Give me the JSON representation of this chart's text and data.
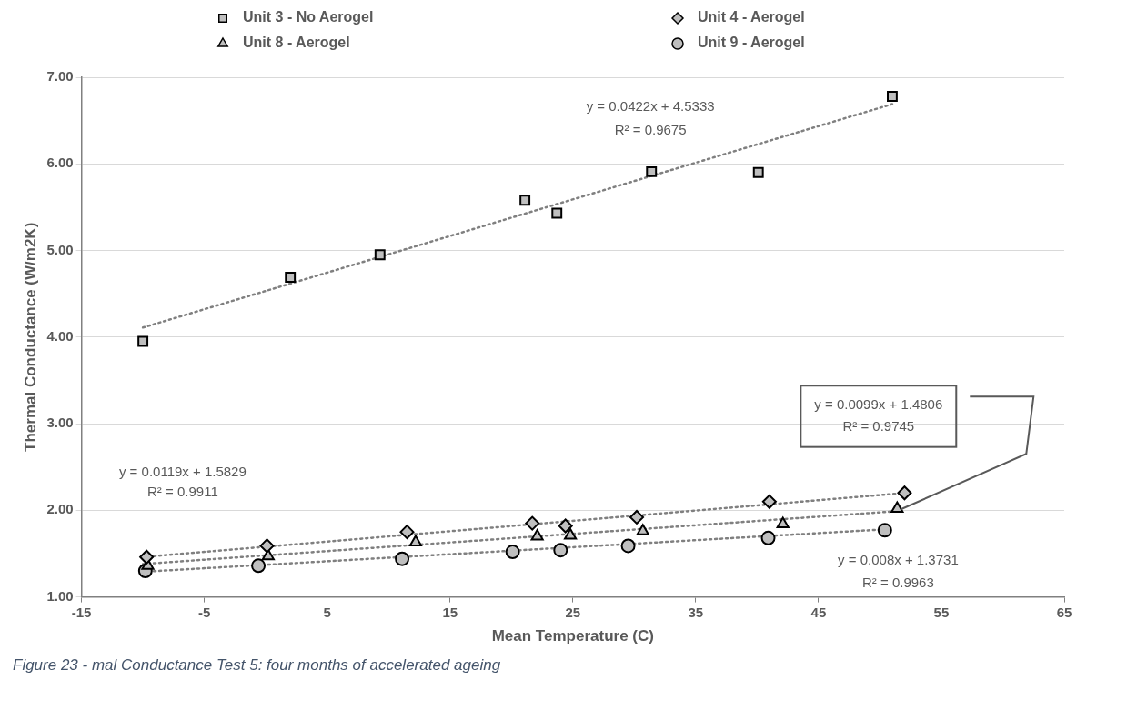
{
  "chart_data": {
    "type": "scatter",
    "xlabel": "Mean Temperature (C)",
    "ylabel": "Thermal Conductance (W/m2K)",
    "xlim": [
      -15,
      65
    ],
    "xticks": [
      -15,
      -5,
      5,
      15,
      25,
      35,
      45,
      55,
      65
    ],
    "ylim": [
      1,
      7
    ],
    "yticks": [
      {
        "value": 1,
        "label": "1.00"
      },
      {
        "value": 2,
        "label": "2.00"
      },
      {
        "value": 3,
        "label": "3.00"
      },
      {
        "value": 4,
        "label": "4.00"
      },
      {
        "value": 5,
        "label": "5.00"
      },
      {
        "value": 6,
        "label": "6.00"
      },
      {
        "value": 7,
        "label": "7.00"
      }
    ],
    "grid": "y",
    "legend": "top",
    "series": [
      {
        "name": "Unit 3 - No Aerogel",
        "type": "scatter",
        "marker": "square",
        "color": "#bfbfbf",
        "x": [
          -10,
          2,
          9.3,
          21.1,
          23.7,
          31.4,
          40.1,
          51
        ],
        "values": [
          3.95,
          4.69,
          4.95,
          5.58,
          5.43,
          5.91,
          5.9,
          6.78
        ]
      },
      {
        "name": "Unit 4 - Aerogel",
        "type": "scatter",
        "marker": "diamond",
        "color": "#bfbfbf",
        "x": [
          -9.7,
          0.1,
          11.5,
          21.7,
          24.4,
          30.2,
          41,
          52
        ],
        "values": [
          1.46,
          1.59,
          1.75,
          1.85,
          1.82,
          1.92,
          2.1,
          2.2
        ]
      },
      {
        "name": "Unit 8 - Aerogel",
        "type": "scatter",
        "marker": "triangle",
        "color": "#bfbfbf",
        "x": [
          -9.6,
          0.2,
          12.2,
          22.1,
          24.8,
          30.7,
          42.1,
          51.4
        ],
        "values": [
          1.36,
          1.47,
          1.63,
          1.7,
          1.71,
          1.76,
          1.84,
          2.02
        ]
      },
      {
        "name": "Unit 9 - Aerogel",
        "type": "scatter",
        "marker": "circle",
        "color": "#bfbfbf",
        "x": [
          -9.8,
          -0.6,
          11.1,
          20.1,
          24,
          29.5,
          40.9,
          50.4
        ],
        "values": [
          1.3,
          1.36,
          1.44,
          1.52,
          1.54,
          1.59,
          1.68,
          1.77
        ]
      },
      {
        "type": "line",
        "marker": "none",
        "line_style": "dotted",
        "color": "#808080",
        "x": [
          -10,
          51
        ],
        "values": [
          4.11,
          6.69
        ]
      },
      {
        "type": "line",
        "marker": "none",
        "line_style": "dotted",
        "color": "#808080",
        "x": [
          -10,
          52
        ],
        "values": [
          1.46,
          2.2
        ]
      },
      {
        "type": "line",
        "marker": "none",
        "line_style": "dotted",
        "color": "#808080",
        "x": [
          -10,
          51.4
        ],
        "values": [
          1.38,
          1.99
        ]
      },
      {
        "type": "line",
        "marker": "none",
        "line_style": "dotted",
        "color": "#808080",
        "x": [
          -10,
          50.4
        ],
        "values": [
          1.29,
          1.78
        ]
      }
    ],
    "annotations": [
      "y = 0.0422x + 4.5333",
      "R² = 0.9675",
      "y = 0.0119x + 1.5829",
      "R² = 0.9911",
      "y = 0.0099x + 1.4806",
      "R² = 0.9745",
      "y = 0.008x + 1.3731",
      "R² = 0.9963",
      "Figure 23 - mal Conductance Test 5: four months of accelerated ageing"
    ]
  }
}
